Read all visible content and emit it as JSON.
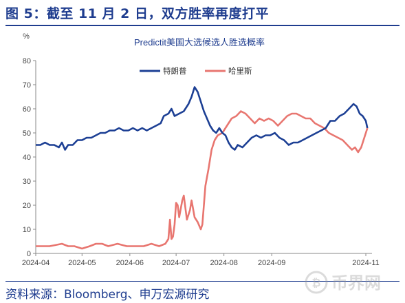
{
  "figure": {
    "title": "图 5：截至 11 月 2 日，双方胜率再度打平",
    "source": "资料来源：Bloomberg、申万宏源研究"
  },
  "watermark": {
    "text": "币界网"
  },
  "chart_data": {
    "type": "line",
    "title": "Predictit美国大选候选人胜选概率",
    "ylabel": "%",
    "xlabel": "",
    "ylim": [
      0,
      80
    ],
    "yticks": [
      0,
      10,
      20,
      30,
      40,
      50,
      60,
      70,
      80
    ],
    "xlim": [
      "2024-04-01",
      "2024-11-05"
    ],
    "xticks": [
      "2024-04",
      "2024-05",
      "2024-06",
      "2024-07",
      "2024-08",
      "2024-09",
      "2024-11"
    ],
    "xtick_dates": [
      "2024-04-01",
      "2024-05-01",
      "2024-06-01",
      "2024-07-01",
      "2024-08-01",
      "2024-09-01",
      "2024-11-01"
    ],
    "grid": false,
    "legend_position": "top",
    "series": [
      {
        "name": "特朗普",
        "color": "#1c3f94",
        "points": [
          [
            "2024-04-01",
            45
          ],
          [
            "2024-04-04",
            45
          ],
          [
            "2024-04-07",
            46
          ],
          [
            "2024-04-10",
            45
          ],
          [
            "2024-04-13",
            45
          ],
          [
            "2024-04-16",
            44
          ],
          [
            "2024-04-18",
            46
          ],
          [
            "2024-04-20",
            43
          ],
          [
            "2024-04-22",
            45
          ],
          [
            "2024-04-25",
            45
          ],
          [
            "2024-04-28",
            47
          ],
          [
            "2024-05-01",
            47
          ],
          [
            "2024-05-04",
            48
          ],
          [
            "2024-05-07",
            48
          ],
          [
            "2024-05-10",
            49
          ],
          [
            "2024-05-13",
            50
          ],
          [
            "2024-05-16",
            50
          ],
          [
            "2024-05-19",
            51
          ],
          [
            "2024-05-22",
            51
          ],
          [
            "2024-05-25",
            52
          ],
          [
            "2024-05-28",
            51
          ],
          [
            "2024-05-31",
            51
          ],
          [
            "2024-06-03",
            52
          ],
          [
            "2024-06-06",
            51
          ],
          [
            "2024-06-09",
            52
          ],
          [
            "2024-06-12",
            51
          ],
          [
            "2024-06-15",
            52
          ],
          [
            "2024-06-18",
            53
          ],
          [
            "2024-06-21",
            54
          ],
          [
            "2024-06-23",
            57
          ],
          [
            "2024-06-26",
            58
          ],
          [
            "2024-06-28",
            60
          ],
          [
            "2024-06-30",
            57
          ],
          [
            "2024-07-03",
            58
          ],
          [
            "2024-07-06",
            59
          ],
          [
            "2024-07-09",
            62
          ],
          [
            "2024-07-11",
            65
          ],
          [
            "2024-07-13",
            69
          ],
          [
            "2024-07-15",
            67
          ],
          [
            "2024-07-17",
            63
          ],
          [
            "2024-07-19",
            59
          ],
          [
            "2024-07-21",
            56
          ],
          [
            "2024-07-23",
            53
          ],
          [
            "2024-07-25",
            51
          ],
          [
            "2024-07-27",
            50
          ],
          [
            "2024-07-29",
            52
          ],
          [
            "2024-07-31",
            50
          ],
          [
            "2024-08-02",
            49
          ],
          [
            "2024-08-04",
            46
          ],
          [
            "2024-08-06",
            44
          ],
          [
            "2024-08-08",
            43
          ],
          [
            "2024-08-10",
            45
          ],
          [
            "2024-08-13",
            44
          ],
          [
            "2024-08-16",
            46
          ],
          [
            "2024-08-19",
            48
          ],
          [
            "2024-08-22",
            49
          ],
          [
            "2024-08-25",
            48
          ],
          [
            "2024-08-28",
            49
          ],
          [
            "2024-08-31",
            49
          ],
          [
            "2024-09-03",
            50
          ],
          [
            "2024-09-06",
            48
          ],
          [
            "2024-09-09",
            47
          ],
          [
            "2024-09-12",
            45
          ],
          [
            "2024-09-15",
            46
          ],
          [
            "2024-09-18",
            46
          ],
          [
            "2024-09-21",
            47
          ],
          [
            "2024-09-24",
            48
          ],
          [
            "2024-09-27",
            49
          ],
          [
            "2024-09-30",
            50
          ],
          [
            "2024-10-03",
            51
          ],
          [
            "2024-10-06",
            52
          ],
          [
            "2024-10-09",
            55
          ],
          [
            "2024-10-12",
            55
          ],
          [
            "2024-10-15",
            57
          ],
          [
            "2024-10-18",
            58
          ],
          [
            "2024-10-21",
            60
          ],
          [
            "2024-10-24",
            62
          ],
          [
            "2024-10-26",
            61
          ],
          [
            "2024-10-28",
            58
          ],
          [
            "2024-10-30",
            57
          ],
          [
            "2024-11-01",
            55
          ],
          [
            "2024-11-02",
            52
          ]
        ]
      },
      {
        "name": "哈里斯",
        "color": "#e87670",
        "points": [
          [
            "2024-04-01",
            3
          ],
          [
            "2024-04-10",
            3
          ],
          [
            "2024-04-18",
            4
          ],
          [
            "2024-04-22",
            3
          ],
          [
            "2024-04-26",
            3
          ],
          [
            "2024-05-01",
            2
          ],
          [
            "2024-05-06",
            3
          ],
          [
            "2024-05-10",
            4
          ],
          [
            "2024-05-14",
            4
          ],
          [
            "2024-05-18",
            3
          ],
          [
            "2024-05-24",
            4
          ],
          [
            "2024-05-30",
            3
          ],
          [
            "2024-06-05",
            3
          ],
          [
            "2024-06-10",
            3
          ],
          [
            "2024-06-15",
            4
          ],
          [
            "2024-06-20",
            3
          ],
          [
            "2024-06-24",
            4
          ],
          [
            "2024-06-26",
            6
          ],
          [
            "2024-06-27",
            14
          ],
          [
            "2024-06-28",
            6
          ],
          [
            "2024-06-29",
            7
          ],
          [
            "2024-06-30",
            12
          ],
          [
            "2024-07-01",
            21
          ],
          [
            "2024-07-02",
            20
          ],
          [
            "2024-07-03",
            15
          ],
          [
            "2024-07-05",
            22
          ],
          [
            "2024-07-06",
            24
          ],
          [
            "2024-07-08",
            14
          ],
          [
            "2024-07-10",
            18
          ],
          [
            "2024-07-11",
            22
          ],
          [
            "2024-07-13",
            15
          ],
          [
            "2024-07-15",
            13
          ],
          [
            "2024-07-17",
            10
          ],
          [
            "2024-07-18",
            12
          ],
          [
            "2024-07-20",
            28
          ],
          [
            "2024-07-22",
            35
          ],
          [
            "2024-07-24",
            43
          ],
          [
            "2024-07-26",
            47
          ],
          [
            "2024-07-28",
            49
          ],
          [
            "2024-07-31",
            50
          ],
          [
            "2024-08-03",
            53
          ],
          [
            "2024-08-06",
            56
          ],
          [
            "2024-08-09",
            57
          ],
          [
            "2024-08-12",
            59
          ],
          [
            "2024-08-15",
            58
          ],
          [
            "2024-08-18",
            56
          ],
          [
            "2024-08-21",
            54
          ],
          [
            "2024-08-24",
            56
          ],
          [
            "2024-08-27",
            55
          ],
          [
            "2024-08-30",
            56
          ],
          [
            "2024-09-02",
            55
          ],
          [
            "2024-09-05",
            53
          ],
          [
            "2024-09-08",
            55
          ],
          [
            "2024-09-11",
            57
          ],
          [
            "2024-09-14",
            58
          ],
          [
            "2024-09-17",
            58
          ],
          [
            "2024-09-20",
            57
          ],
          [
            "2024-09-23",
            56
          ],
          [
            "2024-09-26",
            56
          ],
          [
            "2024-09-29",
            54
          ],
          [
            "2024-10-02",
            53
          ],
          [
            "2024-10-05",
            52
          ],
          [
            "2024-10-08",
            50
          ],
          [
            "2024-10-11",
            49
          ],
          [
            "2024-10-14",
            48
          ],
          [
            "2024-10-17",
            47
          ],
          [
            "2024-10-20",
            45
          ],
          [
            "2024-10-23",
            43
          ],
          [
            "2024-10-25",
            44
          ],
          [
            "2024-10-27",
            42
          ],
          [
            "2024-10-29",
            44
          ],
          [
            "2024-10-31",
            48
          ],
          [
            "2024-11-02",
            52
          ]
        ]
      }
    ]
  }
}
